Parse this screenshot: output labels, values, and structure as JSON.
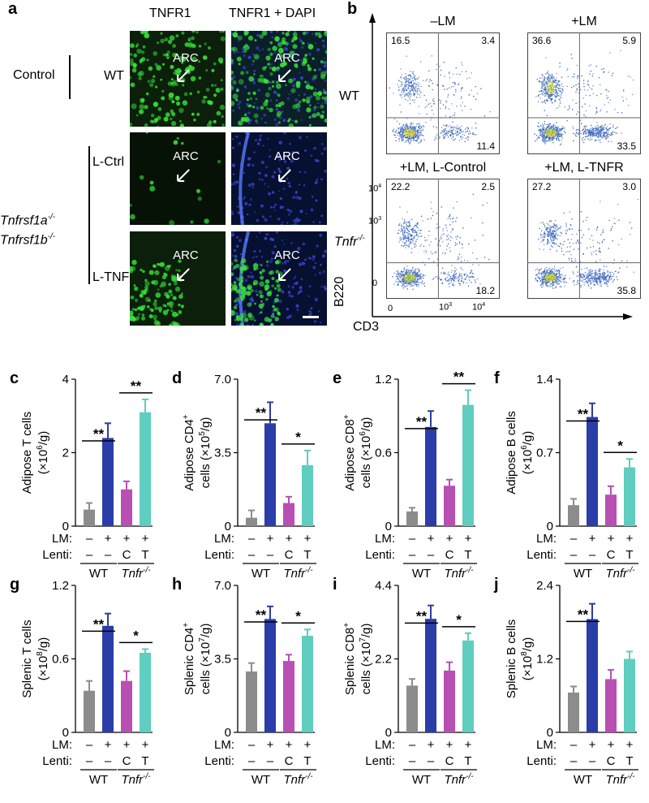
{
  "panel_a": {
    "label": "a",
    "col_headers": [
      "TNFR1",
      "TNFR1 + DAPI"
    ],
    "group_control": "Control",
    "row_wt": "WT",
    "row_lctrl": "L-Ctrl",
    "row_ltnfr": "L-TNFR",
    "genotype_line1": "Tnfrsf1a",
    "genotype_line2": "Tnfrsf1b",
    "genotype_sup": "-/-",
    "region_label": "ARC"
  },
  "panel_b": {
    "label": "b",
    "ylabel": "B220",
    "xlabel": "CD3",
    "row_wt": "WT",
    "row_ko": "Tnfr",
    "row_ko_sup": "-/-",
    "plots": [
      {
        "title": "–LM",
        "ul": "16.5",
        "ur": "3.4",
        "lr": "11.4"
      },
      {
        "title": "+LM",
        "ul": "36.6",
        "ur": "5.9",
        "lr": "33.5"
      },
      {
        "title": "+LM, L-Control",
        "ul": "22.2",
        "ur": "2.5",
        "lr": "18.2"
      },
      {
        "title": "+LM, L-TNFR",
        "ul": "27.2",
        "ur": "3.0",
        "lr": "35.8"
      }
    ],
    "y_ticks": [
      "10",
      "10",
      "0"
    ],
    "y_tick_exps": [
      "4",
      "3",
      ""
    ],
    "x_ticks": [
      "0",
      "10",
      "10"
    ],
    "x_tick_exps": [
      "",
      "3",
      "4"
    ]
  },
  "colors": {
    "grey": "#8c8c8c",
    "blue": "#2b3da8",
    "magenta": "#b84fb3",
    "teal": "#5fcdbf"
  },
  "x_rows": {
    "lm_label": "LM:",
    "lenti_label": "Lenti:",
    "lm_vals": [
      "–",
      "+",
      "+",
      "+"
    ],
    "lenti_vals": [
      "–",
      "–",
      "C",
      "T"
    ],
    "group_wt": "WT",
    "group_ko": "Tnfr",
    "group_ko_sup": "-/-"
  },
  "chart_data": [
    {
      "id": "c",
      "type": "bar",
      "ylabel_line1": "Adipose T cells",
      "ylabel_line2": "(×10",
      "ylabel_exp": "6",
      "ylabel_tail": "/g)",
      "yticks": [
        "0",
        "2",
        "4"
      ],
      "ylim": [
        0,
        4
      ],
      "values": [
        0.45,
        2.4,
        1.0,
        3.1
      ],
      "errors": [
        0.18,
        0.4,
        0.22,
        0.35
      ],
      "sig": [
        {
          "from": 0,
          "to": 1,
          "text": "**"
        },
        {
          "from": 2,
          "to": 3,
          "text": "**"
        }
      ]
    },
    {
      "id": "d",
      "type": "bar",
      "ylabel_line1": "Adipose CD4",
      "ylabel_sup1": "+",
      "ylabel_line2": "cells (×10",
      "ylabel_exp": "5",
      "ylabel_tail": "/g)",
      "yticks": [
        "0",
        "3.5",
        "7.0"
      ],
      "ylim": [
        0,
        7
      ],
      "values": [
        0.4,
        4.9,
        1.1,
        2.9
      ],
      "errors": [
        0.35,
        1.0,
        0.3,
        0.7
      ],
      "sig": [
        {
          "from": 0,
          "to": 1,
          "text": "**"
        },
        {
          "from": 2,
          "to": 3,
          "text": "*"
        }
      ]
    },
    {
      "id": "e",
      "type": "bar",
      "ylabel_line1": "Adipose CD8",
      "ylabel_sup1": "+",
      "ylabel_line2": "cells (×10",
      "ylabel_exp": "6",
      "ylabel_tail": "/g)",
      "yticks": [
        "0",
        "0.6",
        "1.2"
      ],
      "ylim": [
        0,
        1.2
      ],
      "values": [
        0.12,
        0.81,
        0.33,
        0.99
      ],
      "errors": [
        0.03,
        0.13,
        0.05,
        0.12
      ],
      "sig": [
        {
          "from": 0,
          "to": 1,
          "text": "**"
        },
        {
          "from": 2,
          "to": 3,
          "text": "**"
        }
      ]
    },
    {
      "id": "f",
      "type": "bar",
      "ylabel_line1": "Adipose B cells",
      "ylabel_line2": "(×10",
      "ylabel_exp": "6",
      "ylabel_tail": "/g)",
      "yticks": [
        "0",
        "0.7",
        "1.4"
      ],
      "ylim": [
        0,
        1.4
      ],
      "values": [
        0.2,
        1.04,
        0.3,
        0.56
      ],
      "errors": [
        0.06,
        0.13,
        0.08,
        0.08
      ],
      "sig": [
        {
          "from": 0,
          "to": 1,
          "text": "**"
        },
        {
          "from": 2,
          "to": 3,
          "text": "*"
        }
      ]
    },
    {
      "id": "g",
      "type": "bar",
      "ylabel_line1": "Splenic T cells",
      "ylabel_line2": "(×10",
      "ylabel_exp": "8",
      "ylabel_tail": "/g)",
      "yticks": [
        "0",
        "0.6",
        "1.2"
      ],
      "ylim": [
        0,
        1.2
      ],
      "values": [
        0.34,
        0.87,
        0.42,
        0.65
      ],
      "errors": [
        0.08,
        0.1,
        0.08,
        0.03
      ],
      "sig": [
        {
          "from": 0,
          "to": 1,
          "text": "**"
        },
        {
          "from": 2,
          "to": 3,
          "text": "*"
        }
      ]
    },
    {
      "id": "h",
      "type": "bar",
      "ylabel_line1": "Splenic CD4",
      "ylabel_sup1": "+",
      "ylabel_line2": "cells (×10",
      "ylabel_exp": "7",
      "ylabel_tail": "/g)",
      "yticks": [
        "0",
        "3.5",
        "7.0"
      ],
      "ylim": [
        0,
        7
      ],
      "values": [
        2.9,
        5.4,
        3.4,
        4.6
      ],
      "errors": [
        0.4,
        0.6,
        0.3,
        0.3
      ],
      "sig": [
        {
          "from": 0,
          "to": 1,
          "text": "**"
        },
        {
          "from": 2,
          "to": 3,
          "text": "*"
        }
      ]
    },
    {
      "id": "i",
      "type": "bar",
      "ylabel_line1": "Splenic CD8",
      "ylabel_sup1": "+",
      "ylabel_line2": "cells (×10",
      "ylabel_exp": "7",
      "ylabel_tail": "/g)",
      "yticks": [
        "0",
        "2.2",
        "4.4"
      ],
      "ylim": [
        0,
        4.4
      ],
      "values": [
        1.4,
        3.4,
        1.85,
        2.75
      ],
      "errors": [
        0.2,
        0.4,
        0.25,
        0.22
      ],
      "sig": [
        {
          "from": 0,
          "to": 1,
          "text": "**"
        },
        {
          "from": 2,
          "to": 3,
          "text": "*"
        }
      ]
    },
    {
      "id": "j",
      "type": "bar",
      "ylabel_line1": "Splenic B cells",
      "ylabel_line2": "(×10",
      "ylabel_exp": "8",
      "ylabel_tail": "/g)",
      "yticks": [
        "0",
        "1.2",
        "2.4"
      ],
      "ylim": [
        0,
        2.4
      ],
      "values": [
        0.65,
        1.85,
        0.87,
        1.2
      ],
      "errors": [
        0.1,
        0.25,
        0.15,
        0.12
      ],
      "sig": [
        {
          "from": 0,
          "to": 1,
          "text": "**"
        }
      ]
    }
  ]
}
